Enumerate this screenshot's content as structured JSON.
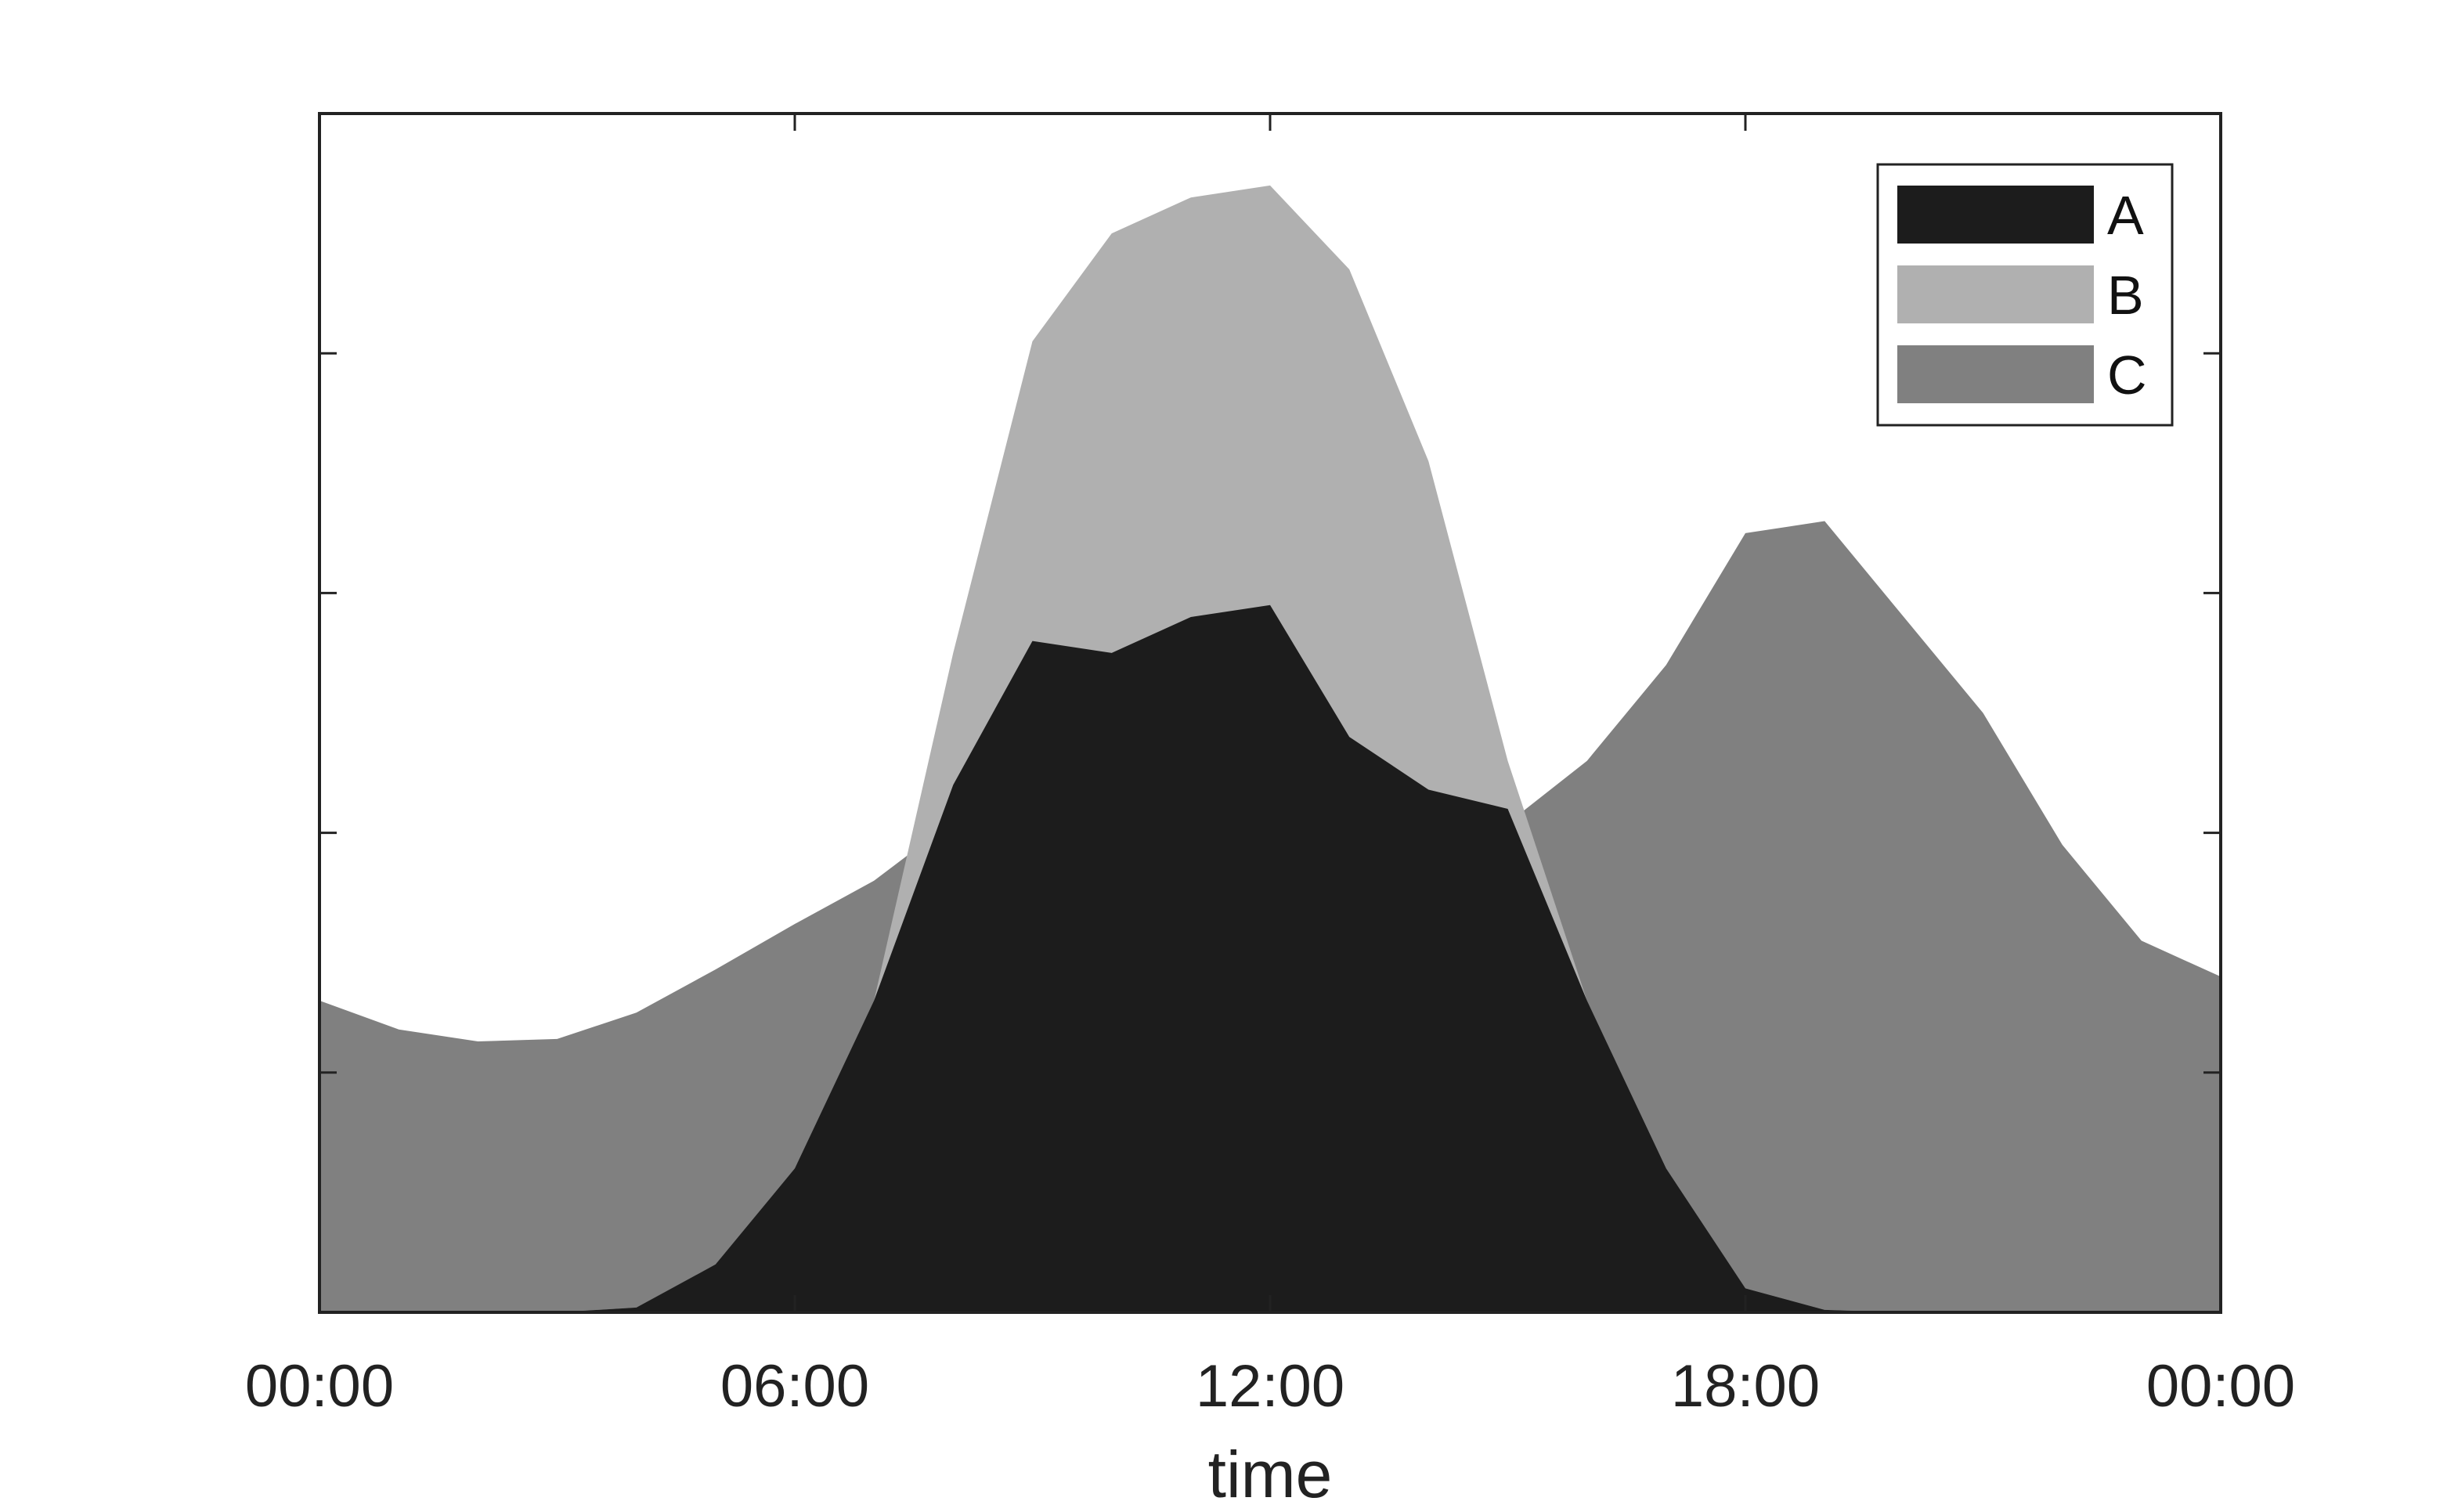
{
  "chart_data": {
    "type": "area",
    "title": "",
    "xlabel": "time",
    "ylabel": "",
    "x_tick_labels": [
      "00:00",
      "06:00",
      "12:00",
      "18:00",
      "00:00"
    ],
    "x": [
      0,
      1,
      2,
      3,
      4,
      5,
      6,
      7,
      8,
      9,
      10,
      11,
      12,
      13,
      14,
      15,
      16,
      17,
      18,
      19,
      20,
      21,
      22,
      23,
      24
    ],
    "x_unit": "hours",
    "xlim": [
      0,
      24
    ],
    "ylim": [
      0,
      5
    ],
    "y_ticks_labeled": false,
    "grid": false,
    "legend_position": "top-right",
    "series": [
      {
        "name": "A",
        "color": "#1c1c1c",
        "values": [
          0,
          0,
          0,
          0,
          0.02,
          0.2,
          0.6,
          1.3,
          2.2,
          2.8,
          2.75,
          2.9,
          2.95,
          2.4,
          2.18,
          2.1,
          1.3,
          0.6,
          0.1,
          0.01,
          0,
          0,
          0,
          0,
          0
        ]
      },
      {
        "name": "B",
        "color": "#b0b0b0",
        "values": [
          0,
          0,
          0,
          0,
          0.02,
          0.2,
          0.6,
          1.3,
          2.75,
          4.05,
          4.5,
          4.65,
          4.7,
          4.35,
          3.55,
          2.3,
          1.3,
          0.6,
          0.1,
          0.01,
          0,
          0,
          0,
          0,
          0
        ]
      },
      {
        "name": "C",
        "color": "#808080",
        "values": [
          1.3,
          1.18,
          1.13,
          1.14,
          1.25,
          1.43,
          1.62,
          1.8,
          2.05,
          2.22,
          2.45,
          2.38,
          2.28,
          2.15,
          2.07,
          2.04,
          2.3,
          2.7,
          3.25,
          3.3,
          2.9,
          2.5,
          1.95,
          1.55,
          1.4
        ]
      }
    ]
  }
}
